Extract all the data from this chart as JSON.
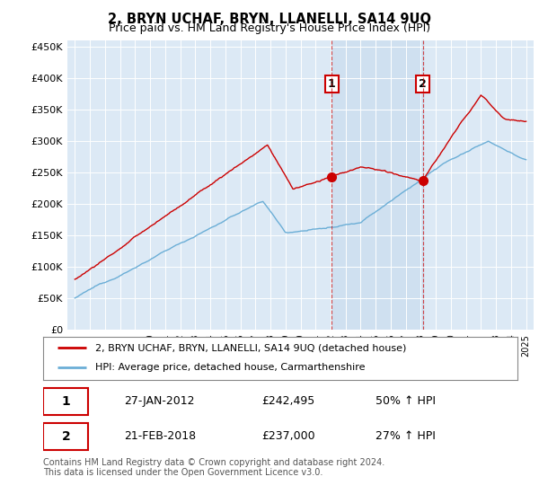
{
  "title": "2, BRYN UCHAF, BRYN, LLANELLI, SA14 9UQ",
  "subtitle": "Price paid vs. HM Land Registry's House Price Index (HPI)",
  "ylim": [
    0,
    460000
  ],
  "yticks": [
    0,
    50000,
    100000,
    150000,
    200000,
    250000,
    300000,
    350000,
    400000,
    450000
  ],
  "ytick_labels": [
    "£0",
    "£50K",
    "£100K",
    "£150K",
    "£200K",
    "£250K",
    "£300K",
    "£350K",
    "£400K",
    "£450K"
  ],
  "hpi_color": "#6baed6",
  "price_color": "#cc0000",
  "sale1_date": "27-JAN-2012",
  "sale1_price": 242495,
  "sale1_label": "1",
  "sale1_hpi_pct": "50% ↑ HPI",
  "sale1_x": 2012.07,
  "sale2_date": "21-FEB-2018",
  "sale2_price": 237000,
  "sale2_label": "2",
  "sale2_hpi_pct": "27% ↑ HPI",
  "sale2_x": 2018.13,
  "legend_property": "2, BRYN UCHAF, BRYN, LLANELLI, SA14 9UQ (detached house)",
  "legend_hpi": "HPI: Average price, detached house, Carmarthenshire",
  "footer": "Contains HM Land Registry data © Crown copyright and database right 2024.\nThis data is licensed under the Open Government Licence v3.0.",
  "background_plot": "#dce9f5",
  "shade_color": "#cfe0f0",
  "background_fig": "#ffffff",
  "xlim_left": 1994.5,
  "xlim_right": 2025.5
}
